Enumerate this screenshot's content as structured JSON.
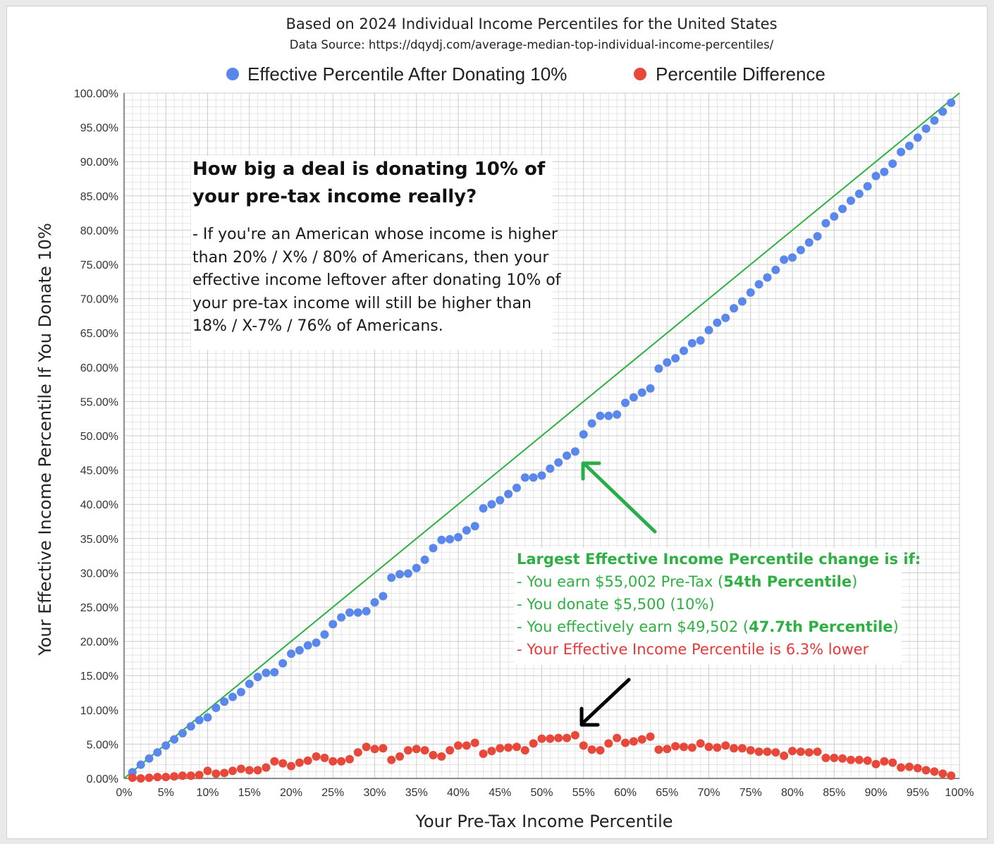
{
  "chart_data": {
    "type": "scatter",
    "title": "Based on 2024 Individual Income Percentiles for the United States",
    "subtitle": "Data Source: https://dqydj.com/average-median-top-individual-income-percentiles/",
    "xlabel": "Your Pre-Tax Income Percentile",
    "ylabel": "Your Effective Income Percentile If You Donate 10%",
    "xlim": [
      0,
      100
    ],
    "ylim": [
      0,
      100
    ],
    "x_ticks": [
      "0%",
      "5%",
      "10%",
      "15%",
      "20%",
      "25%",
      "30%",
      "35%",
      "40%",
      "45%",
      "50%",
      "55%",
      "60%",
      "65%",
      "70%",
      "75%",
      "80%",
      "85%",
      "90%",
      "95%",
      "100%"
    ],
    "y_ticks": [
      "0.00%",
      "5.00%",
      "10.00%",
      "15.00%",
      "20.00%",
      "25.00%",
      "30.00%",
      "35.00%",
      "40.00%",
      "45.00%",
      "50.00%",
      "55.00%",
      "60.00%",
      "65.00%",
      "70.00%",
      "75.00%",
      "80.00%",
      "85.00%",
      "90.00%",
      "95.00%",
      "100.00%"
    ],
    "grid": true,
    "legend_position": "top",
    "reference_line": {
      "from": [
        0,
        0
      ],
      "to": [
        100,
        100
      ],
      "color": "#2eb043"
    },
    "x": [
      1,
      2,
      3,
      4,
      5,
      6,
      7,
      8,
      9,
      10,
      11,
      12,
      13,
      14,
      15,
      16,
      17,
      18,
      19,
      20,
      21,
      22,
      23,
      24,
      25,
      26,
      27,
      28,
      29,
      30,
      31,
      32,
      33,
      34,
      35,
      36,
      37,
      38,
      39,
      40,
      41,
      42,
      43,
      44,
      45,
      46,
      47,
      48,
      49,
      50,
      51,
      52,
      53,
      54,
      55,
      56,
      57,
      58,
      59,
      60,
      61,
      62,
      63,
      64,
      65,
      66,
      67,
      68,
      69,
      70,
      71,
      72,
      73,
      74,
      75,
      76,
      77,
      78,
      79,
      80,
      81,
      82,
      83,
      84,
      85,
      86,
      87,
      88,
      89,
      90,
      91,
      92,
      93,
      94,
      95,
      96,
      97,
      98,
      99
    ],
    "series": [
      {
        "name": "Effective Percentile After Donating 10%",
        "color": "#5a87ec",
        "values": [
          0.9,
          2,
          2.9,
          3.8,
          4.8,
          5.7,
          6.6,
          7.6,
          8.5,
          8.9,
          10.3,
          11.2,
          11.9,
          12.6,
          13.8,
          14.8,
          15.4,
          15.5,
          16.8,
          18.2,
          18.7,
          19.4,
          19.8,
          21,
          22.5,
          23.5,
          24.2,
          24.2,
          24.4,
          25.7,
          26.6,
          29.3,
          29.8,
          29.9,
          30.7,
          31.9,
          33.6,
          34.8,
          34.9,
          35.2,
          36.2,
          36.8,
          39.4,
          40,
          40.6,
          41.5,
          42.4,
          43.9,
          43.9,
          44.2,
          45.2,
          46.1,
          47.1,
          47.7,
          50.2,
          51.8,
          52.9,
          52.9,
          53.1,
          54.8,
          55.6,
          56.3,
          56.9,
          59.8,
          60.7,
          61.3,
          62.4,
          63.5,
          63.9,
          65.4,
          66.5,
          67.2,
          68.6,
          69.6,
          70.9,
          72.1,
          73.1,
          74.2,
          75.7,
          76,
          77.1,
          78.2,
          79.1,
          81,
          82,
          83.1,
          84.3,
          85.3,
          86.4,
          87.9,
          88.5,
          89.7,
          91.4,
          92.3,
          93.5,
          94.8,
          96,
          97.3,
          98.6
        ]
      },
      {
        "name": "Percentile Difference",
        "color": "#e8483a",
        "values": [
          0.1,
          0,
          0.1,
          0.2,
          0.2,
          0.3,
          0.4,
          0.4,
          0.5,
          1.1,
          0.7,
          0.8,
          1.1,
          1.4,
          1.2,
          1.2,
          1.6,
          2.5,
          2.2,
          1.8,
          2.3,
          2.6,
          3.2,
          3,
          2.5,
          2.5,
          2.8,
          3.8,
          4.6,
          4.3,
          4.4,
          2.7,
          3.2,
          4.1,
          4.3,
          4.1,
          3.4,
          3.2,
          4.1,
          4.8,
          4.8,
          5.2,
          3.6,
          4,
          4.4,
          4.5,
          4.6,
          4.1,
          5.1,
          5.8,
          5.8,
          5.9,
          5.9,
          6.3,
          4.8,
          4.2,
          4.1,
          5.1,
          5.9,
          5.2,
          5.4,
          5.7,
          6.1,
          4.2,
          4.3,
          4.7,
          4.6,
          4.5,
          5.1,
          4.6,
          4.5,
          4.8,
          4.4,
          4.4,
          4.1,
          3.9,
          3.9,
          3.8,
          3.3,
          4,
          3.9,
          3.8,
          3.9,
          3,
          3,
          2.9,
          2.7,
          2.7,
          2.6,
          2.1,
          2.5,
          2.3,
          1.6,
          1.7,
          1.5,
          1.2,
          1,
          0.7,
          0.4
        ]
      }
    ]
  },
  "info_box": {
    "heading_line1": "How big a deal is donating 10% of",
    "heading_line2": "your pre-tax income really?",
    "body_line1": "- If you're an American whose income is higher",
    "body_line2": "than 20% / X% / 80% of Americans, then your",
    "body_line3": "effective income leftover after donating 10% of",
    "body_line4": "your pre-tax income will still be higher than",
    "body_line5": "18% / X-7% / 76% of Americans."
  },
  "result_box": {
    "title": "Largest Effective Income Percentile change is if:",
    "line1_prefix": "- You earn $55,002 Pre-Tax (",
    "line1_bold": "54th Percentile",
    "line1_suffix": ")",
    "line2": "- You donate $5,500 (10%)",
    "line3_prefix": "- You effectively earn $49,502 (",
    "line3_bold": "47.7th Percentile",
    "line3_suffix": ")",
    "line4": "- Your Effective Income Percentile is 6.3% lower"
  },
  "colors": {
    "reference_line": "#2eb043",
    "green_arrow": "#27ae4a",
    "black_arrow": "#000000"
  }
}
